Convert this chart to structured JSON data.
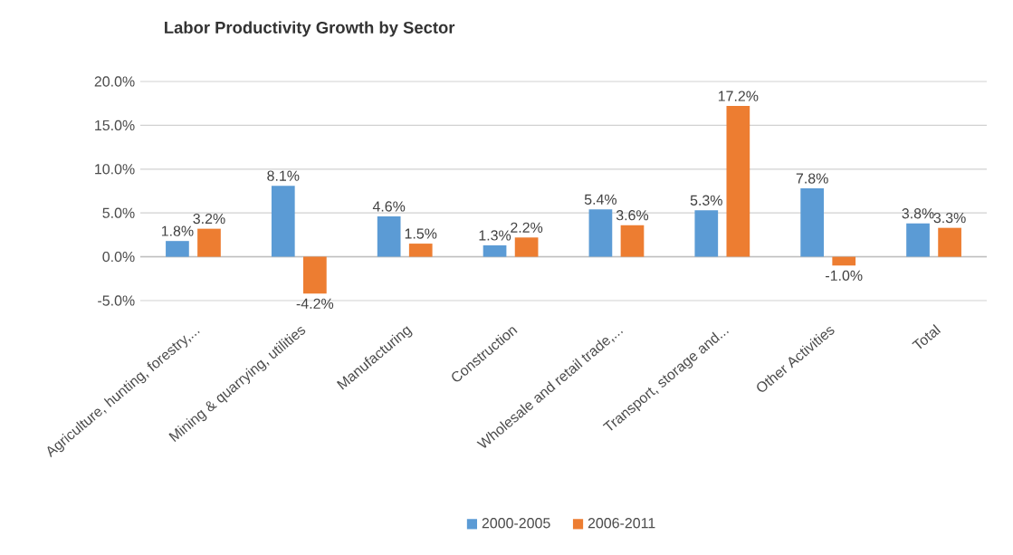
{
  "chart_data": {
    "type": "bar",
    "title": "Labor Productivity Growth  by Sector",
    "categories": [
      "Agriculture, hunting, forestry,...",
      "Mining & quarrying, utilities",
      "Manufacturing",
      "Construction",
      "Wholesale and retail trade,...",
      "Transport, storage and...",
      "Other Activities",
      "Total"
    ],
    "series": [
      {
        "name": "2000-2005",
        "color": "#5b9bd5",
        "values": [
          1.8,
          8.1,
          4.6,
          1.3,
          5.4,
          5.3,
          7.8,
          3.8
        ],
        "value_labels": [
          "1.8%",
          "8.1%",
          "4.6%",
          "1.3%",
          "5.4%",
          "5.3%",
          "7.8%",
          "3.8%"
        ]
      },
      {
        "name": "2006-2011",
        "color": "#ed7d31",
        "values": [
          3.2,
          -4.2,
          1.5,
          2.2,
          3.6,
          17.2,
          -1.0,
          3.3
        ],
        "value_labels": [
          "3.2%",
          "-4.2%",
          "1.5%",
          "2.2%",
          "3.6%",
          "17.2%",
          "-1.0%",
          "3.3%"
        ]
      }
    ],
    "ylim": [
      -5,
      20
    ],
    "yticks": [
      {
        "value": -5,
        "label": "-5.0%"
      },
      {
        "value": 0,
        "label": "0.0%"
      },
      {
        "value": 5,
        "label": "5.0%"
      },
      {
        "value": 10,
        "label": "10.0%"
      },
      {
        "value": 15,
        "label": "15.0%"
      },
      {
        "value": 20,
        "label": "20.0%"
      }
    ],
    "grid": "y",
    "legend": "bottom"
  }
}
